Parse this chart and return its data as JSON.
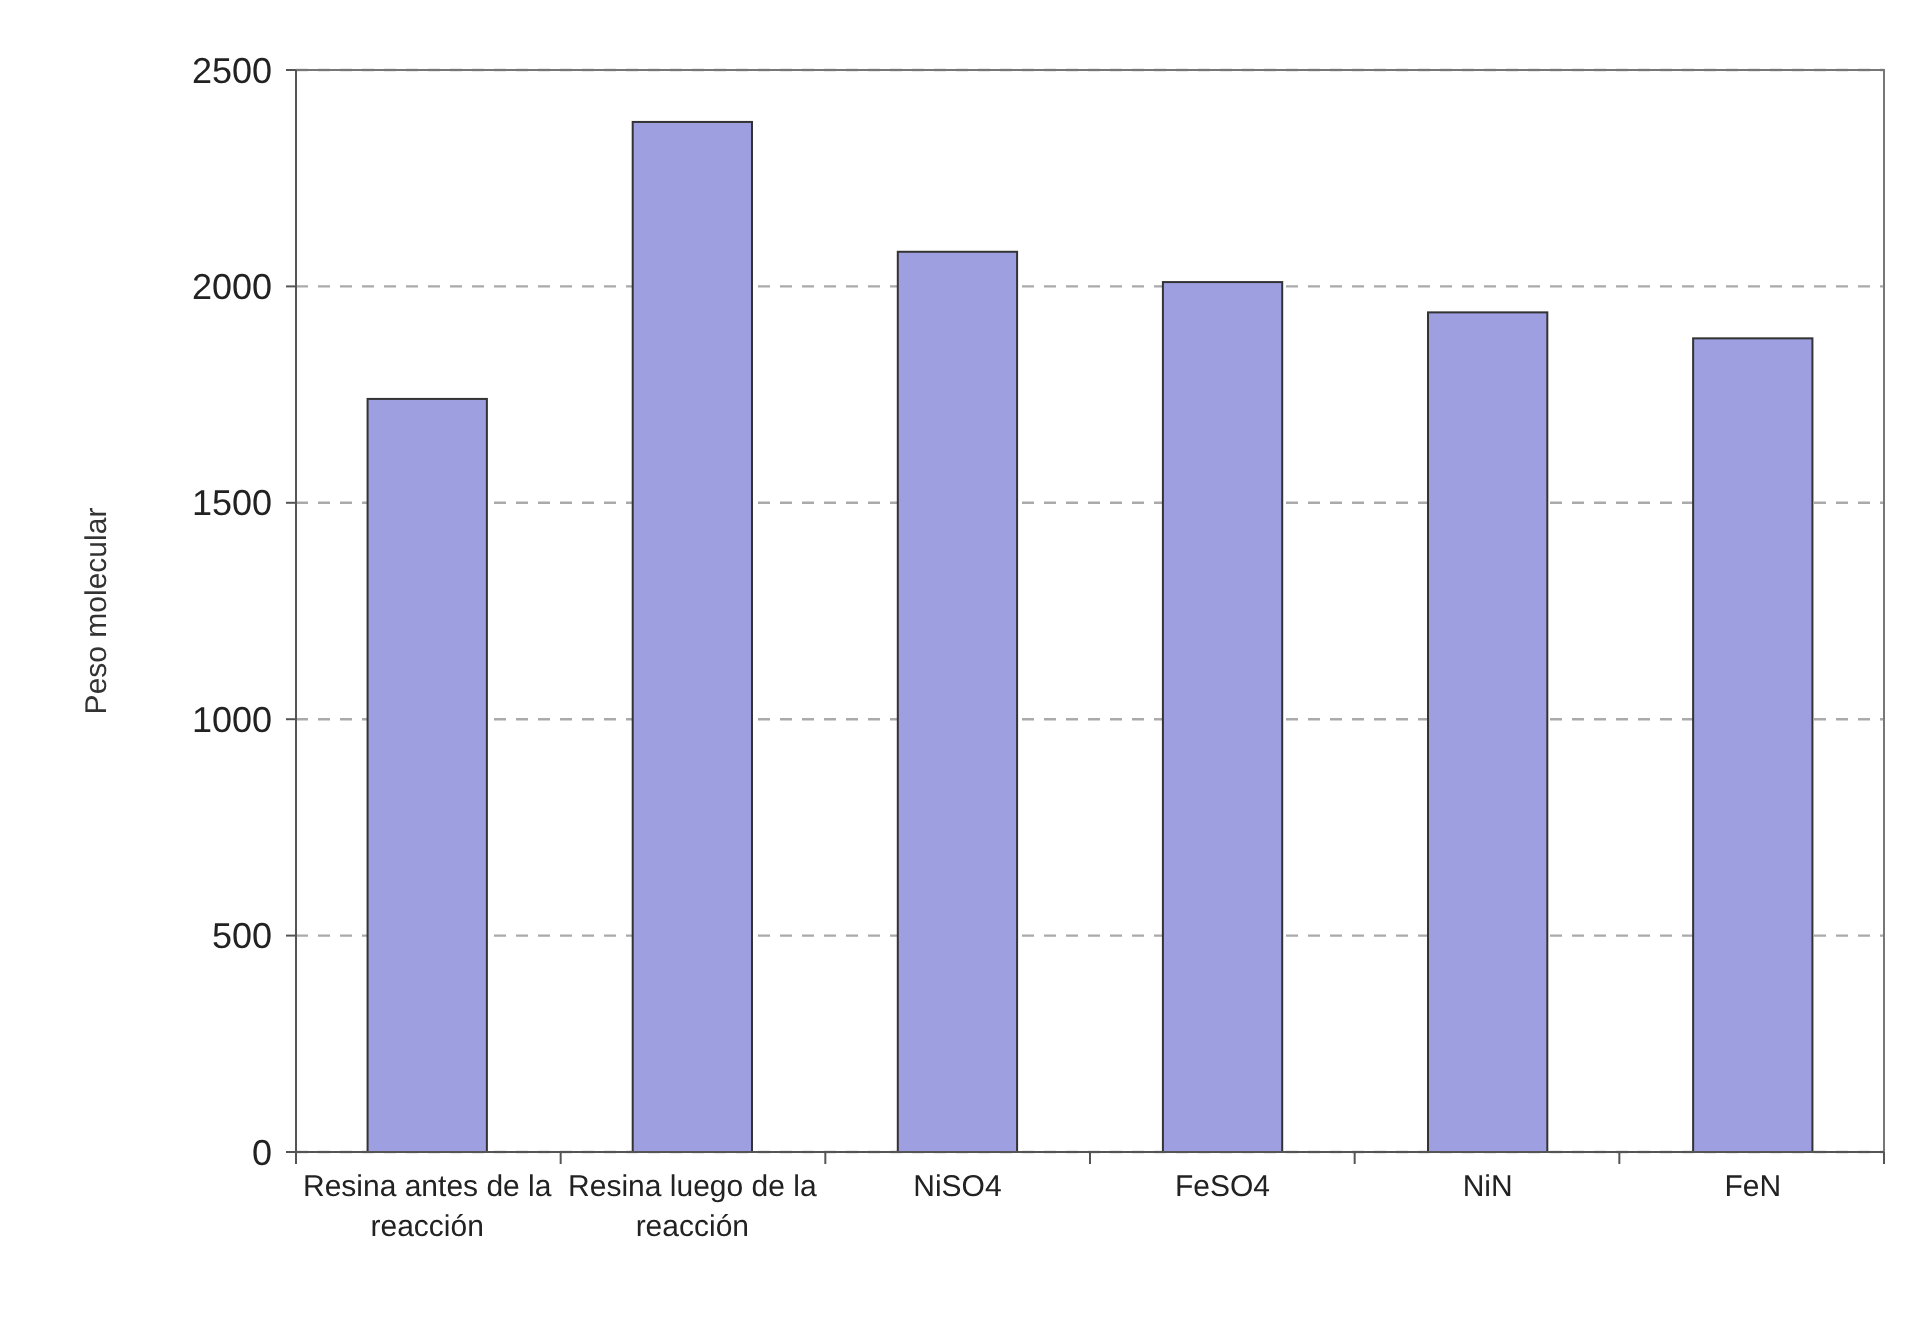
{
  "chart_data": {
    "type": "bar",
    "ylabel": "Peso molecular",
    "categories": [
      "Resina antes de la reacción",
      "Resina luego de la reacción",
      "NiSO4",
      "FeSO4",
      "NiN",
      "FeN"
    ],
    "values": [
      1740,
      2380,
      2080,
      2010,
      1940,
      1880
    ],
    "color": "#9d9fe0",
    "ylim": [
      0,
      2500
    ],
    "yticks": [
      0,
      500,
      1000,
      1500,
      2000,
      2500
    ],
    "grid": "y"
  }
}
